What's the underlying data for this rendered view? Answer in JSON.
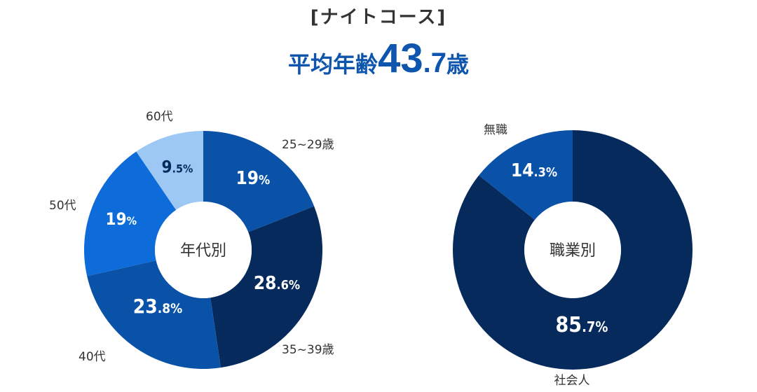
{
  "header": {
    "course": "[ナイトコース]",
    "avg_label": "平均年齢",
    "avg_int": "43",
    "avg_dec": ".7",
    "avg_unit": "歳"
  },
  "chart_data": [
    {
      "type": "pie",
      "center_label": "年代別",
      "categories": [
        "25~29歳",
        "35~39歳",
        "40代",
        "50代",
        "60代"
      ],
      "values": [
        19,
        28.6,
        23.8,
        19,
        9.5
      ],
      "value_int": [
        "19",
        "28",
        "23",
        "19",
        "9"
      ],
      "value_dec": [
        "",
        ".6",
        ".8",
        "",
        ".5"
      ],
      "unit": "%",
      "colors": [
        "#0a52a8",
        "#062a5c",
        "#0a52a8",
        "#0d6cd9",
        "#9dc8f4"
      ],
      "value_colors": [
        "#ffffff",
        "#ffffff",
        "#ffffff",
        "#ffffff",
        "#062a5c"
      ]
    },
    {
      "type": "pie",
      "center_label": "職業別",
      "categories": [
        "社会人",
        "無職"
      ],
      "values": [
        85.7,
        14.3
      ],
      "value_int": [
        "85",
        "14"
      ],
      "value_dec": [
        ".7",
        ".3"
      ],
      "unit": "%",
      "colors": [
        "#062a5c",
        "#0a52a8"
      ],
      "value_colors": [
        "#ffffff",
        "#ffffff"
      ]
    }
  ]
}
